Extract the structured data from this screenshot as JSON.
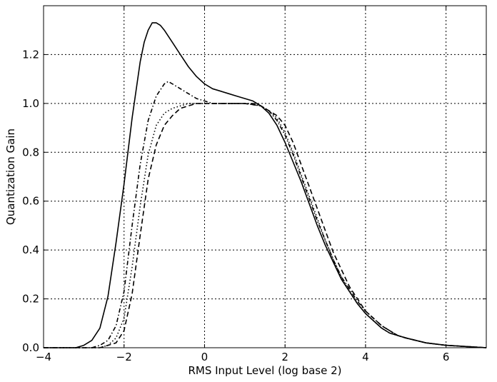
{
  "chart_data": {
    "type": "line",
    "xlabel": "RMS Input Level (log base 2)",
    "ylabel": "Quantization Gain",
    "xlim": [
      -4,
      7
    ],
    "ylim": [
      0,
      1.4
    ],
    "xticks": [
      -4,
      -2,
      0,
      2,
      4,
      6
    ],
    "yticks": [
      0.0,
      0.2,
      0.4,
      0.6,
      0.8,
      1.0,
      1.2
    ],
    "xtick_labels": [
      "−4",
      "−2",
      "0",
      "2",
      "4",
      "6"
    ],
    "ytick_labels": [
      "0.0",
      "0.2",
      "0.4",
      "0.6",
      "0.8",
      "1.0",
      "1.2"
    ],
    "grid": true,
    "series": [
      {
        "style": "solid",
        "x": [
          -4,
          -3.2,
          -3.0,
          -2.8,
          -2.6,
          -2.4,
          -2.2,
          -2.0,
          -1.8,
          -1.6,
          -1.5,
          -1.4,
          -1.3,
          -1.2,
          -1.1,
          -1.0,
          -0.8,
          -0.6,
          -0.4,
          -0.2,
          0.0,
          0.2,
          0.4,
          0.6,
          0.8,
          1.0,
          1.2,
          1.4,
          1.6,
          1.8,
          2.0,
          2.2,
          2.4,
          2.6,
          2.8,
          3.0,
          3.2,
          3.4,
          3.6,
          3.8,
          4.0,
          4.2,
          4.4,
          4.6,
          4.8,
          5.0,
          5.5,
          6.0,
          6.5,
          7.0
        ],
        "y": [
          0.0,
          0.0,
          0.01,
          0.03,
          0.08,
          0.21,
          0.43,
          0.67,
          0.94,
          1.17,
          1.25,
          1.3,
          1.33,
          1.33,
          1.32,
          1.3,
          1.25,
          1.2,
          1.15,
          1.11,
          1.08,
          1.06,
          1.05,
          1.04,
          1.03,
          1.02,
          1.01,
          0.99,
          0.96,
          0.91,
          0.84,
          0.76,
          0.68,
          0.59,
          0.5,
          0.42,
          0.35,
          0.28,
          0.23,
          0.18,
          0.14,
          0.11,
          0.08,
          0.06,
          0.05,
          0.04,
          0.02,
          0.01,
          0.005,
          0.0
        ]
      },
      {
        "style": "dash-dot",
        "x": [
          -4,
          -3.0,
          -2.8,
          -2.6,
          -2.4,
          -2.2,
          -2.0,
          -1.8,
          -1.6,
          -1.4,
          -1.2,
          -1.0,
          -0.9,
          -0.8,
          -0.6,
          -0.4,
          -0.2,
          0.0,
          0.2,
          0.4,
          0.6,
          0.8,
          1.0,
          1.2,
          1.4,
          1.6,
          1.8,
          2.0,
          2.2,
          2.4,
          2.6,
          2.8,
          3.0,
          3.2,
          3.4,
          3.6,
          3.8,
          4.0,
          4.2,
          4.4,
          4.6,
          4.8,
          5.0,
          5.5,
          6.0,
          6.5,
          7.0
        ],
        "y": [
          0.0,
          0.0,
          0.0,
          0.01,
          0.03,
          0.09,
          0.23,
          0.5,
          0.75,
          0.93,
          1.03,
          1.08,
          1.09,
          1.08,
          1.06,
          1.04,
          1.02,
          1.01,
          1.0,
          1.0,
          1.0,
          1.0,
          1.0,
          1.0,
          0.99,
          0.97,
          0.93,
          0.87,
          0.79,
          0.7,
          0.61,
          0.52,
          0.44,
          0.36,
          0.29,
          0.24,
          0.19,
          0.15,
          0.12,
          0.09,
          0.07,
          0.05,
          0.04,
          0.02,
          0.01,
          0.005,
          0.0
        ]
      },
      {
        "style": "dotted",
        "x": [
          -4,
          -2.8,
          -2.6,
          -2.4,
          -2.2,
          -2.0,
          -1.8,
          -1.6,
          -1.4,
          -1.2,
          -1.0,
          -0.8,
          -0.6,
          -0.4,
          -0.2,
          0.0,
          0.5,
          1.0,
          1.4,
          1.6,
          1.8,
          2.0,
          2.2,
          2.4,
          2.6,
          2.8,
          3.0,
          3.2,
          3.4,
          3.6,
          3.8,
          4.0,
          4.2,
          4.4,
          4.6,
          4.8,
          5.0,
          5.5,
          6.0,
          6.5,
          7.0
        ],
        "y": [
          0.0,
          0.0,
          0.0,
          0.01,
          0.04,
          0.12,
          0.33,
          0.58,
          0.79,
          0.91,
          0.96,
          0.98,
          0.99,
          1.0,
          1.0,
          1.0,
          1.0,
          1.0,
          0.99,
          0.97,
          0.94,
          0.88,
          0.8,
          0.71,
          0.62,
          0.53,
          0.44,
          0.36,
          0.29,
          0.23,
          0.18,
          0.14,
          0.11,
          0.08,
          0.06,
          0.05,
          0.04,
          0.02,
          0.01,
          0.005,
          0.0
        ]
      },
      {
        "style": "dashed",
        "x": [
          -4,
          -2.8,
          -2.6,
          -2.4,
          -2.2,
          -2.0,
          -1.8,
          -1.6,
          -1.4,
          -1.2,
          -1.0,
          -0.8,
          -0.6,
          -0.4,
          -0.2,
          0.0,
          0.5,
          1.0,
          1.4,
          1.6,
          1.8,
          2.0,
          2.2,
          2.4,
          2.6,
          2.8,
          3.0,
          3.2,
          3.4,
          3.6,
          3.8,
          4.0,
          4.2,
          4.4,
          4.6,
          4.8,
          5.0,
          5.5,
          6.0,
          6.5,
          7.0
        ],
        "y": [
          0.0,
          0.0,
          0.0,
          0.01,
          0.02,
          0.07,
          0.22,
          0.46,
          0.69,
          0.83,
          0.91,
          0.95,
          0.98,
          0.99,
          1.0,
          1.0,
          1.0,
          1.0,
          0.99,
          0.97,
          0.95,
          0.91,
          0.84,
          0.75,
          0.66,
          0.57,
          0.48,
          0.39,
          0.32,
          0.25,
          0.2,
          0.15,
          0.12,
          0.09,
          0.07,
          0.05,
          0.04,
          0.02,
          0.01,
          0.005,
          0.0
        ]
      }
    ]
  }
}
